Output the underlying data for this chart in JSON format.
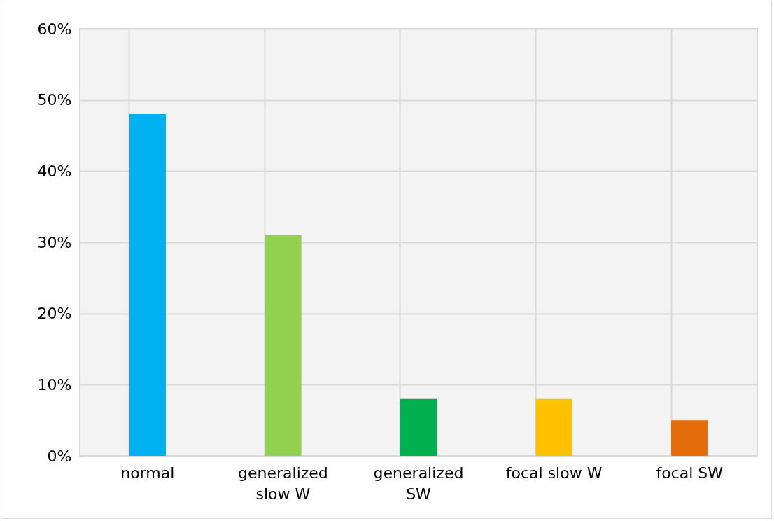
{
  "chart_data": {
    "type": "bar",
    "categories": [
      "normal",
      "generalized slow W",
      "generalized SW",
      "focal slow W",
      "focal SW"
    ],
    "values": [
      48,
      31,
      8,
      8,
      5
    ],
    "colors": [
      "#00b0f0",
      "#92d050",
      "#00b050",
      "#ffc000",
      "#e46c0a"
    ],
    "ylim": [
      0,
      60
    ],
    "yticks": [
      {
        "value": 0,
        "label": "0%"
      },
      {
        "value": 10,
        "label": "10%"
      },
      {
        "value": 20,
        "label": "20%"
      },
      {
        "value": 30,
        "label": "30%"
      },
      {
        "value": 40,
        "label": "40%"
      },
      {
        "value": 50,
        "label": "50%"
      },
      {
        "value": 60,
        "label": "60%"
      }
    ],
    "grid": true
  }
}
